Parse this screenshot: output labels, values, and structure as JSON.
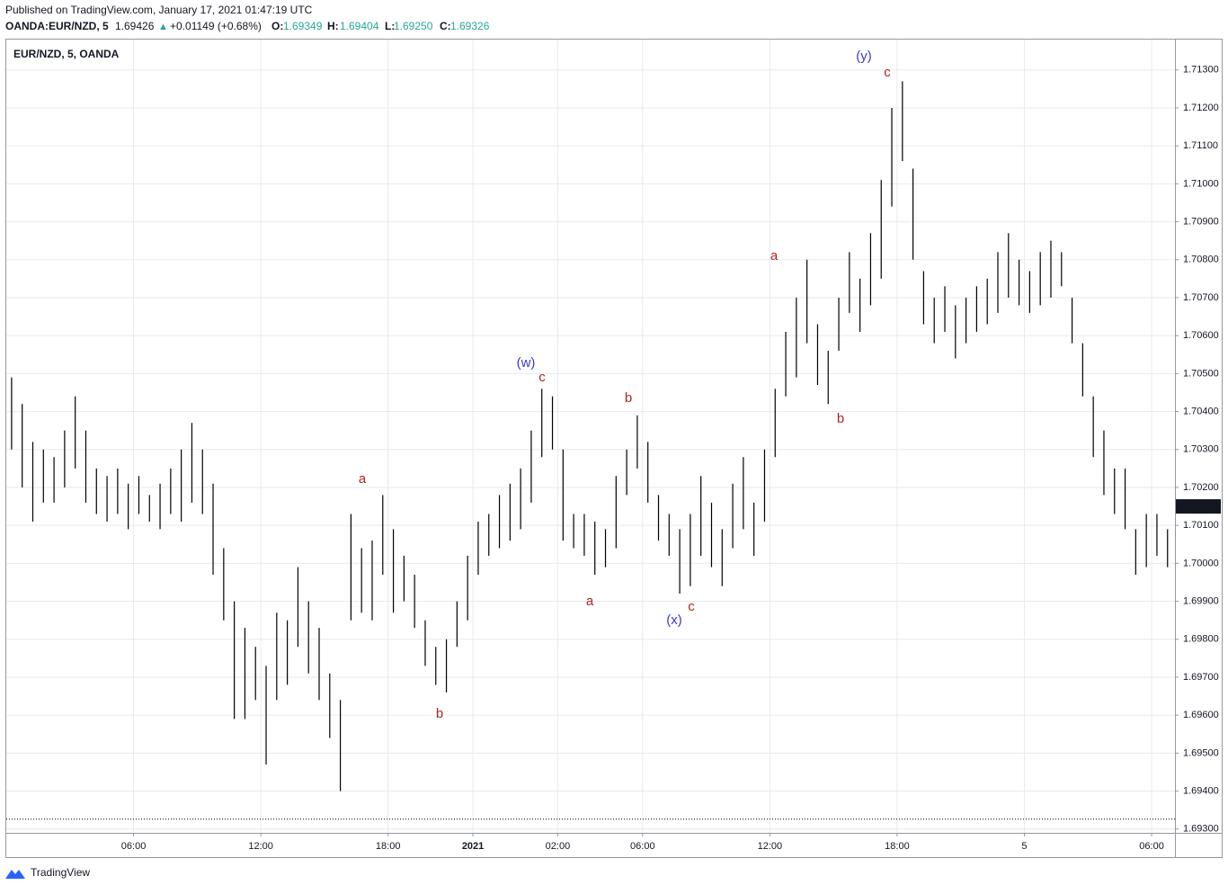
{
  "header": {
    "published": "Published on TradingView.com, January 17, 2021 01:47:19 UTC",
    "symbol": "OANDA:EUR/NZD, 5",
    "price": "1.69426",
    "arrow": "▲",
    "change": "+0.01149 (+0.68%)",
    "o_label": "O:",
    "o": "1.69349",
    "h_label": "H:",
    "h": "1.69404",
    "l_label": "L:",
    "l": "1.69250",
    "c_label": "C:",
    "c": "1.69326"
  },
  "chart_data": {
    "type": "ohlc",
    "legend": "EUR/NZD, 5, OANDA",
    "color": "#000000",
    "xlim": [
      0,
      55.1
    ],
    "ylim": [
      1.6929,
      1.7138
    ],
    "xticks": [
      {
        "value": 6,
        "label": "06:00"
      },
      {
        "value": 12,
        "label": "12:00"
      },
      {
        "value": 18,
        "label": "18:00"
      },
      {
        "value": 22,
        "label": "2021"
      },
      {
        "value": 26,
        "label": "02:00"
      },
      {
        "value": 30,
        "label": "06:00"
      },
      {
        "value": 36,
        "label": "12:00"
      },
      {
        "value": 42,
        "label": "18:00"
      },
      {
        "value": 48,
        "label": "5"
      },
      {
        "value": 54,
        "label": "06:00"
      }
    ],
    "yticks": [
      {
        "value": 1.693,
        "label": "1.69300"
      },
      {
        "value": 1.694,
        "label": "1.69400"
      },
      {
        "value": 1.695,
        "label": "1.69500"
      },
      {
        "value": 1.696,
        "label": "1.69600"
      },
      {
        "value": 1.697,
        "label": "1.69700"
      },
      {
        "value": 1.698,
        "label": "1.69800"
      },
      {
        "value": 1.699,
        "label": "1.69900"
      },
      {
        "value": 1.7,
        "label": "1.70000"
      },
      {
        "value": 1.701,
        "label": "1.70100"
      },
      {
        "value": 1.702,
        "label": "1.70200"
      },
      {
        "value": 1.703,
        "label": "1.70300"
      },
      {
        "value": 1.704,
        "label": "1.70400"
      },
      {
        "value": 1.705,
        "label": "1.70500"
      },
      {
        "value": 1.706,
        "label": "1.70600"
      },
      {
        "value": 1.707,
        "label": "1.70700"
      },
      {
        "value": 1.708,
        "label": "1.70800"
      },
      {
        "value": 1.709,
        "label": "1.70900"
      },
      {
        "value": 1.71,
        "label": "1.71000"
      },
      {
        "value": 1.711,
        "label": "1.71100"
      },
      {
        "value": 1.712,
        "label": "1.71200"
      },
      {
        "value": 1.713,
        "label": "1.71300"
      }
    ],
    "grid": true,
    "last_price": {
      "value": 1.7015,
      "label": "1.70150"
    },
    "x": [
      0.25,
      0.75,
      1.25,
      1.75,
      2.25,
      2.75,
      3.25,
      3.75,
      4.25,
      4.75,
      5.25,
      5.75,
      6.25,
      6.75,
      7.25,
      7.75,
      8.25,
      8.75,
      9.25,
      9.75,
      10.25,
      10.75,
      11.25,
      11.75,
      12.25,
      12.75,
      13.25,
      13.75,
      14.25,
      14.75,
      15.25,
      15.75,
      16.25,
      16.75,
      17.25,
      17.75,
      18.25,
      18.75,
      19.25,
      19.75,
      20.25,
      20.75,
      21.25,
      21.75,
      22.25,
      22.75,
      23.25,
      23.75,
      24.25,
      24.75,
      25.25,
      25.75,
      26.25,
      26.75,
      27.25,
      27.75,
      28.25,
      28.75,
      29.25,
      29.75,
      30.25,
      30.75,
      31.25,
      31.75,
      32.25,
      32.75,
      33.25,
      33.75,
      34.25,
      34.75,
      35.25,
      35.75,
      36.25,
      36.75,
      37.25,
      37.75,
      38.25,
      38.75,
      39.25,
      39.75,
      40.25,
      40.75,
      41.25,
      41.75,
      42.25,
      42.75,
      43.25,
      43.75,
      44.25,
      44.75,
      45.25,
      45.75,
      46.25,
      46.75,
      47.25,
      47.75,
      48.25,
      48.75,
      49.25,
      49.75,
      50.25,
      50.75,
      51.25,
      51.75,
      52.25,
      52.75,
      53.25,
      53.75,
      54.25,
      54.75
    ],
    "high": [
      1.7049,
      1.7042,
      1.7032,
      1.703,
      1.7028,
      1.7035,
      1.7044,
      1.7035,
      1.7025,
      1.7023,
      1.7025,
      1.7021,
      1.7023,
      1.7018,
      1.7021,
      1.7025,
      1.703,
      1.7037,
      1.703,
      1.7021,
      1.7004,
      1.699,
      1.6983,
      1.6978,
      1.6973,
      1.6987,
      1.6985,
      1.6999,
      1.699,
      1.6983,
      1.6971,
      1.6964,
      1.7013,
      1.7004,
      1.7006,
      1.7018,
      1.7009,
      1.7002,
      1.6997,
      1.6985,
      1.6978,
      1.698,
      1.699,
      1.7002,
      1.7011,
      1.7013,
      1.7018,
      1.7021,
      1.7025,
      1.7035,
      1.7046,
      1.7044,
      1.703,
      1.7013,
      1.7013,
      1.7011,
      1.7009,
      1.7023,
      1.703,
      1.7039,
      1.7032,
      1.7018,
      1.7013,
      1.7009,
      1.7013,
      1.7023,
      1.7016,
      1.7009,
      1.7021,
      1.7028,
      1.7016,
      1.703,
      1.7046,
      1.7061,
      1.707,
      1.708,
      1.7063,
      1.7056,
      1.707,
      1.7082,
      1.7075,
      1.7087,
      1.7101,
      1.712,
      1.7127,
      1.7104,
      1.7077,
      1.707,
      1.7073,
      1.7068,
      1.707,
      1.7073,
      1.7075,
      1.7082,
      1.7087,
      1.708,
      1.7077,
      1.7082,
      1.7085,
      1.7082,
      1.707,
      1.7058,
      1.7044,
      1.7035,
      1.7025,
      1.7025,
      1.7009,
      1.7013,
      1.7013,
      1.7009
    ],
    "low": [
      1.703,
      1.702,
      1.7011,
      1.7016,
      1.7016,
      1.702,
      1.7025,
      1.7016,
      1.7013,
      1.7011,
      1.7013,
      1.7009,
      1.7013,
      1.7011,
      1.7009,
      1.7013,
      1.7011,
      1.7016,
      1.7013,
      1.6997,
      1.6985,
      1.6959,
      1.6959,
      1.6964,
      1.6947,
      1.6964,
      1.6968,
      1.6978,
      1.6971,
      1.6964,
      1.6954,
      1.694,
      1.6985,
      1.6987,
      1.6985,
      1.6997,
      1.6987,
      1.699,
      1.6983,
      1.6973,
      1.6968,
      1.6966,
      1.6978,
      1.6985,
      1.6997,
      1.7002,
      1.7004,
      1.7006,
      1.7009,
      1.7016,
      1.7028,
      1.703,
      1.7006,
      1.7004,
      1.7002,
      1.6997,
      1.6999,
      1.7004,
      1.7018,
      1.7025,
      1.7016,
      1.7006,
      1.7002,
      1.6992,
      1.6994,
      1.7002,
      1.6999,
      1.6994,
      1.7004,
      1.7009,
      1.7002,
      1.7011,
      1.7028,
      1.7044,
      1.7049,
      1.7058,
      1.7047,
      1.7042,
      1.7056,
      1.7066,
      1.7061,
      1.7068,
      1.7075,
      1.7094,
      1.7106,
      1.708,
      1.7063,
      1.7058,
      1.7061,
      1.7054,
      1.7058,
      1.7061,
      1.7063,
      1.7066,
      1.707,
      1.7068,
      1.7066,
      1.7068,
      1.707,
      1.7073,
      1.7058,
      1.7044,
      1.7028,
      1.7018,
      1.7013,
      1.7009,
      1.6997,
      1.6999,
      1.7002,
      1.6999
    ],
    "annotations": [
      {
        "text": "(w)",
        "color": "#3a3ad8"
      },
      {
        "text": "c",
        "color": "#b22222"
      },
      {
        "text": "a",
        "color": "#b22222"
      },
      {
        "text": "b",
        "color": "#b22222"
      },
      {
        "text": "b",
        "color": "#b22222"
      },
      {
        "text": "a",
        "color": "#b22222"
      },
      {
        "text": "(x)",
        "color": "#3a3ad8"
      },
      {
        "text": "c",
        "color": "#b22222"
      },
      {
        "text": "a",
        "color": "#b22222"
      },
      {
        "text": "b",
        "color": "#b22222"
      },
      {
        "text": "(y)",
        "color": "#3a3ad8"
      },
      {
        "text": "c",
        "color": "#b22222"
      }
    ]
  },
  "footer": {
    "brand": "TradingView"
  }
}
